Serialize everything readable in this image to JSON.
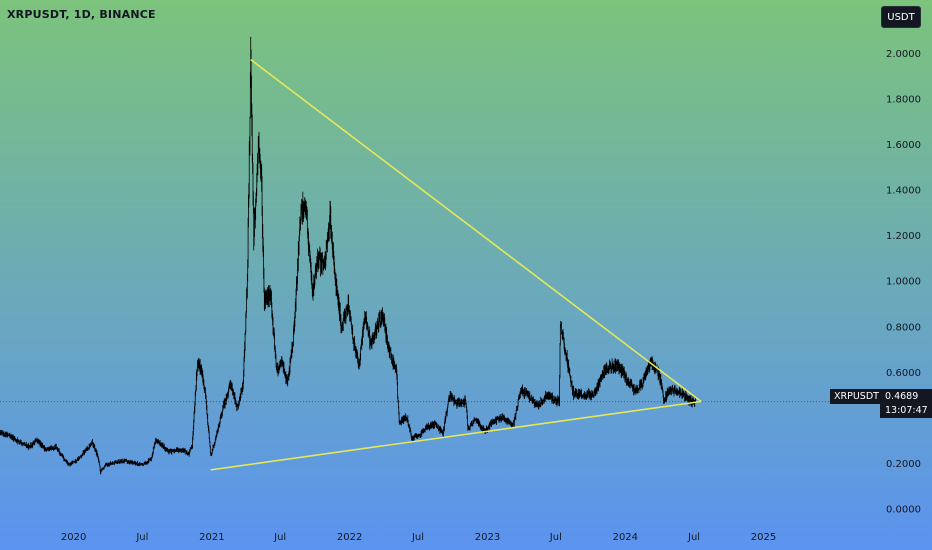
{
  "header": {
    "symbol_title": "XRPUSDT, 1D, BINANCE",
    "currency_button": "USDT"
  },
  "last_price": {
    "symbol": "XRPUSDT",
    "value": "0.4689",
    "countdown": "13:07:47"
  },
  "colors": {
    "background_top": "#7cc37c",
    "background_bottom": "#5b93f0",
    "candles": "#000000",
    "trendlines": "#e4e85a",
    "axis_text": "#131722",
    "price_line": "#444444"
  },
  "chart_data": {
    "type": "candlestick",
    "title": "XRPUSDT, 1D, BINANCE",
    "xlim": [
      "2019-06-20",
      "2025-10-10"
    ],
    "ylim": [
      -0.05,
      2.1
    ],
    "y_ticks": [
      {
        "value": 2.0,
        "label": "2.0000"
      },
      {
        "value": 1.8,
        "label": "1.8000"
      },
      {
        "value": 1.6,
        "label": "1.6000"
      },
      {
        "value": 1.4,
        "label": "1.4000"
      },
      {
        "value": 1.2,
        "label": "1.2000"
      },
      {
        "value": 1.0,
        "label": "1.0000"
      },
      {
        "value": 0.8,
        "label": "0.8000"
      },
      {
        "value": 0.6,
        "label": "0.6000"
      },
      {
        "value": 0.2,
        "label": "0.2000"
      },
      {
        "value": 0.0,
        "label": "0.0000"
      }
    ],
    "x_ticks": [
      {
        "date": "2020-01-01",
        "label": "2020"
      },
      {
        "date": "2020-07-01",
        "label": "Jul"
      },
      {
        "date": "2021-01-01",
        "label": "2021"
      },
      {
        "date": "2021-07-01",
        "label": "Jul"
      },
      {
        "date": "2022-01-01",
        "label": "2022"
      },
      {
        "date": "2022-07-01",
        "label": "Jul"
      },
      {
        "date": "2023-01-01",
        "label": "2023"
      },
      {
        "date": "2023-07-01",
        "label": "Jul"
      },
      {
        "date": "2024-01-01",
        "label": "2024"
      },
      {
        "date": "2024-07-01",
        "label": "Jul"
      },
      {
        "date": "2025-01-01",
        "label": "2025"
      }
    ],
    "price_series": [
      [
        "2019-06-20",
        0.33
      ],
      [
        "2019-07-15",
        0.32
      ],
      [
        "2019-08-10",
        0.29
      ],
      [
        "2019-09-05",
        0.27
      ],
      [
        "2019-09-25",
        0.3
      ],
      [
        "2019-10-20",
        0.26
      ],
      [
        "2019-11-15",
        0.27
      ],
      [
        "2019-12-10",
        0.21
      ],
      [
        "2019-12-20",
        0.19
      ],
      [
        "2020-01-15",
        0.22
      ],
      [
        "2020-02-10",
        0.27
      ],
      [
        "2020-02-20",
        0.29
      ],
      [
        "2020-03-05",
        0.23
      ],
      [
        "2020-03-12",
        0.16
      ],
      [
        "2020-03-25",
        0.19
      ],
      [
        "2020-04-15",
        0.2
      ],
      [
        "2020-05-10",
        0.21
      ],
      [
        "2020-06-10",
        0.2
      ],
      [
        "2020-07-01",
        0.19
      ],
      [
        "2020-07-25",
        0.22
      ],
      [
        "2020-08-05",
        0.3
      ],
      [
        "2020-08-20",
        0.28
      ],
      [
        "2020-09-10",
        0.25
      ],
      [
        "2020-10-15",
        0.26
      ],
      [
        "2020-11-01",
        0.24
      ],
      [
        "2020-11-10",
        0.28
      ],
      [
        "2020-11-24",
        0.65
      ],
      [
        "2020-12-05",
        0.6
      ],
      [
        "2020-12-15",
        0.5
      ],
      [
        "2020-12-29",
        0.23
      ],
      [
        "2021-01-10",
        0.3
      ],
      [
        "2021-02-01",
        0.45
      ],
      [
        "2021-02-20",
        0.55
      ],
      [
        "2021-03-10",
        0.44
      ],
      [
        "2021-03-25",
        0.55
      ],
      [
        "2021-04-05",
        1.0
      ],
      [
        "2021-04-14",
        1.96
      ],
      [
        "2021-04-22",
        1.2
      ],
      [
        "2021-05-05",
        1.6
      ],
      [
        "2021-05-12",
        1.45
      ],
      [
        "2021-05-20",
        0.9
      ],
      [
        "2021-06-05",
        0.95
      ],
      [
        "2021-06-22",
        0.6
      ],
      [
        "2021-07-05",
        0.65
      ],
      [
        "2021-07-20",
        0.55
      ],
      [
        "2021-08-05",
        0.75
      ],
      [
        "2021-08-25",
        1.3
      ],
      [
        "2021-09-05",
        1.35
      ],
      [
        "2021-09-25",
        0.95
      ],
      [
        "2021-10-10",
        1.1
      ],
      [
        "2021-10-25",
        1.05
      ],
      [
        "2021-11-10",
        1.28
      ],
      [
        "2021-11-25",
        1.0
      ],
      [
        "2021-12-10",
        0.8
      ],
      [
        "2021-12-28",
        0.9
      ],
      [
        "2022-01-10",
        0.75
      ],
      [
        "2022-01-25",
        0.62
      ],
      [
        "2022-02-10",
        0.85
      ],
      [
        "2022-02-25",
        0.72
      ],
      [
        "2022-03-15",
        0.8
      ],
      [
        "2022-03-28",
        0.85
      ],
      [
        "2022-04-15",
        0.7
      ],
      [
        "2022-05-05",
        0.6
      ],
      [
        "2022-05-12",
        0.38
      ],
      [
        "2022-06-01",
        0.4
      ],
      [
        "2022-06-15",
        0.31
      ],
      [
        "2022-07-05",
        0.32
      ],
      [
        "2022-07-25",
        0.36
      ],
      [
        "2022-08-15",
        0.37
      ],
      [
        "2022-09-05",
        0.33
      ],
      [
        "2022-09-23",
        0.5
      ],
      [
        "2022-10-10",
        0.46
      ],
      [
        "2022-11-05",
        0.47
      ],
      [
        "2022-11-10",
        0.35
      ],
      [
        "2022-12-01",
        0.39
      ],
      [
        "2022-12-25",
        0.34
      ],
      [
        "2023-01-15",
        0.38
      ],
      [
        "2023-02-05",
        0.4
      ],
      [
        "2023-02-25",
        0.38
      ],
      [
        "2023-03-10",
        0.36
      ],
      [
        "2023-03-29",
        0.52
      ],
      [
        "2023-04-15",
        0.5
      ],
      [
        "2023-05-15",
        0.45
      ],
      [
        "2023-06-10",
        0.5
      ],
      [
        "2023-06-25",
        0.48
      ],
      [
        "2023-07-10",
        0.47
      ],
      [
        "2023-07-13",
        0.82
      ],
      [
        "2023-07-25",
        0.7
      ],
      [
        "2023-08-17",
        0.5
      ],
      [
        "2023-09-10",
        0.5
      ],
      [
        "2023-10-10",
        0.5
      ],
      [
        "2023-11-05",
        0.6
      ],
      [
        "2023-11-20",
        0.62
      ],
      [
        "2023-12-10",
        0.63
      ],
      [
        "2023-12-25",
        0.6
      ],
      [
        "2024-01-10",
        0.55
      ],
      [
        "2024-01-25",
        0.52
      ],
      [
        "2024-02-15",
        0.55
      ],
      [
        "2024-03-10",
        0.65
      ],
      [
        "2024-03-20",
        0.62
      ],
      [
        "2024-04-01",
        0.58
      ],
      [
        "2024-04-13",
        0.47
      ],
      [
        "2024-04-25",
        0.52
      ],
      [
        "2024-05-15",
        0.52
      ],
      [
        "2024-06-10",
        0.49
      ],
      [
        "2024-06-25",
        0.47
      ],
      [
        "2024-07-05",
        0.47
      ]
    ],
    "trendlines": [
      {
        "from": {
          "date": "2021-04-14",
          "price": 1.97
        },
        "to": {
          "date": "2024-07-20",
          "price": 0.47
        }
      },
      {
        "from": {
          "date": "2020-12-29",
          "price": 0.17
        },
        "to": {
          "date": "2024-07-20",
          "price": 0.47
        }
      }
    ],
    "last_price": 0.4689
  }
}
